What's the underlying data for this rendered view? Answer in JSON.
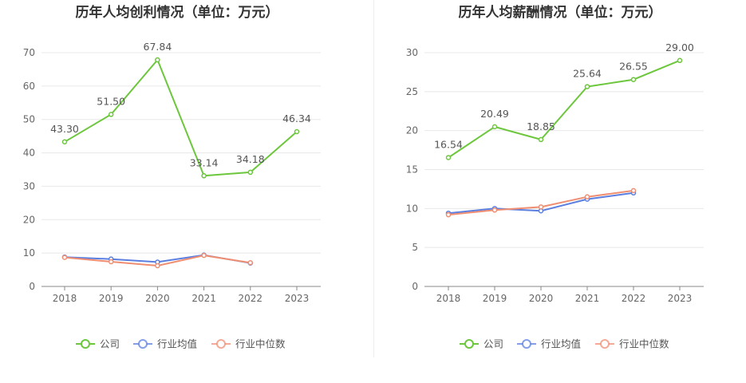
{
  "chart_data": [
    {
      "type": "line",
      "title": "历年人均创利情况（单位：万元）",
      "categories": [
        "2018",
        "2019",
        "2020",
        "2021",
        "2022",
        "2023"
      ],
      "ylim": [
        0,
        70
      ],
      "yticks": [
        0,
        10,
        20,
        30,
        40,
        50,
        60,
        70
      ],
      "grid": true,
      "legend_position": "bottom",
      "series": [
        {
          "name": "公司",
          "color": "#6cc73c",
          "values": [
            43.3,
            51.5,
            67.84,
            33.14,
            34.18,
            46.34
          ],
          "labels": [
            "43.30",
            "51.50",
            "67.84",
            "33.14",
            "34.18",
            "46.34"
          ]
        },
        {
          "name": "行业均值",
          "color": "#5b7fe0",
          "values": [
            8.8,
            8.2,
            7.3,
            9.4,
            7.0,
            null
          ]
        },
        {
          "name": "行业中位数",
          "color": "#f08e72",
          "values": [
            8.7,
            7.4,
            6.2,
            9.3,
            7.1,
            null
          ]
        }
      ]
    },
    {
      "type": "line",
      "title": "历年人均薪酬情况（单位：万元）",
      "categories": [
        "2018",
        "2019",
        "2020",
        "2021",
        "2022",
        "2023"
      ],
      "ylim": [
        0,
        30
      ],
      "yticks": [
        0,
        5,
        10,
        15,
        20,
        25,
        30
      ],
      "grid": true,
      "legend_position": "bottom",
      "series": [
        {
          "name": "公司",
          "color": "#6cc73c",
          "values": [
            16.54,
            20.49,
            18.85,
            25.64,
            26.55,
            29.0
          ],
          "labels": [
            "16.54",
            "20.49",
            "18.85",
            "25.64",
            "26.55",
            "29.00"
          ]
        },
        {
          "name": "行业均值",
          "color": "#5b7fe0",
          "values": [
            9.4,
            10.0,
            9.7,
            11.2,
            12.0,
            null
          ]
        },
        {
          "name": "行业中位数",
          "color": "#f08e72",
          "values": [
            9.2,
            9.8,
            10.2,
            11.5,
            12.3,
            null
          ]
        }
      ]
    }
  ]
}
